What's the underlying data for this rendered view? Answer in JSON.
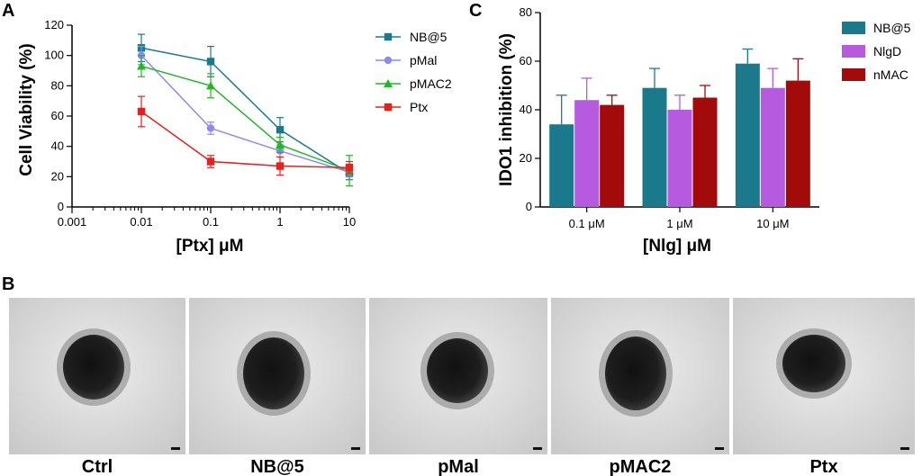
{
  "panels": {
    "A": "A",
    "B": "B",
    "C": "C"
  },
  "colors": {
    "NB@5": "#1a7a8c",
    "pMal": "#8c8cf0",
    "pMAC2": "#22b822",
    "Ptx": "#e8201c",
    "NlgD": "#b65be0",
    "nMAC": "#a30b0b"
  },
  "chart_data": [
    {
      "type": "line",
      "xlabel": "[Ptx] μM",
      "ylabel": "Cell Viability (%)",
      "xscale": "log",
      "xlim": [
        0.001,
        10
      ],
      "ylim": [
        0,
        120
      ],
      "xticks": [
        "0.001",
        "0.01",
        "0.1",
        "1",
        "10"
      ],
      "yticks": [
        "0",
        "20",
        "40",
        "60",
        "80",
        "100",
        "120"
      ],
      "x": [
        0.01,
        0.1,
        1,
        10
      ],
      "legend_position": "top-right",
      "series": [
        {
          "name": "NB@5",
          "values": [
            105,
            96,
            51,
            22
          ],
          "errors": [
            9,
            10,
            8,
            4
          ],
          "marker": "square",
          "color": "#1a7a8c"
        },
        {
          "name": "pMal",
          "values": [
            100,
            52,
            37,
            23
          ],
          "errors": [
            6,
            4,
            4,
            3
          ],
          "marker": "circle",
          "color": "#8c8cf0"
        },
        {
          "name": "pMAC2",
          "values": [
            93,
            80,
            41,
            24
          ],
          "errors": [
            7,
            8,
            5,
            10
          ],
          "marker": "triangle",
          "color": "#22b822"
        },
        {
          "name": "Ptx",
          "values": [
            63,
            30,
            27,
            26
          ],
          "errors": [
            10,
            4,
            6,
            4
          ],
          "marker": "square",
          "color": "#e8201c"
        }
      ]
    },
    {
      "type": "bar",
      "xlabel": "[Nlg] μM",
      "ylabel": "IDO1 inhibition (%)",
      "ylim": [
        0,
        80
      ],
      "yticks": [
        "0",
        "20",
        "40",
        "60",
        "80"
      ],
      "categories": [
        "0.1 μM",
        "1 μM",
        "10 μM"
      ],
      "legend_position": "top-right",
      "series": [
        {
          "name": "NB@5",
          "values": [
            34,
            49,
            59
          ],
          "errors": [
            12,
            8,
            6
          ],
          "color": "#1a7a8c"
        },
        {
          "name": "NlgD",
          "values": [
            44,
            40,
            49
          ],
          "errors": [
            9,
            6,
            8
          ],
          "color": "#b65be0"
        },
        {
          "name": "nMAC",
          "values": [
            42,
            45,
            52
          ],
          "errors": [
            4,
            5,
            9
          ],
          "color": "#a30b0b"
        }
      ]
    }
  ],
  "images": [
    "Ctrl",
    "NB@5",
    "pMal",
    "pMAC2",
    "Ptx"
  ]
}
